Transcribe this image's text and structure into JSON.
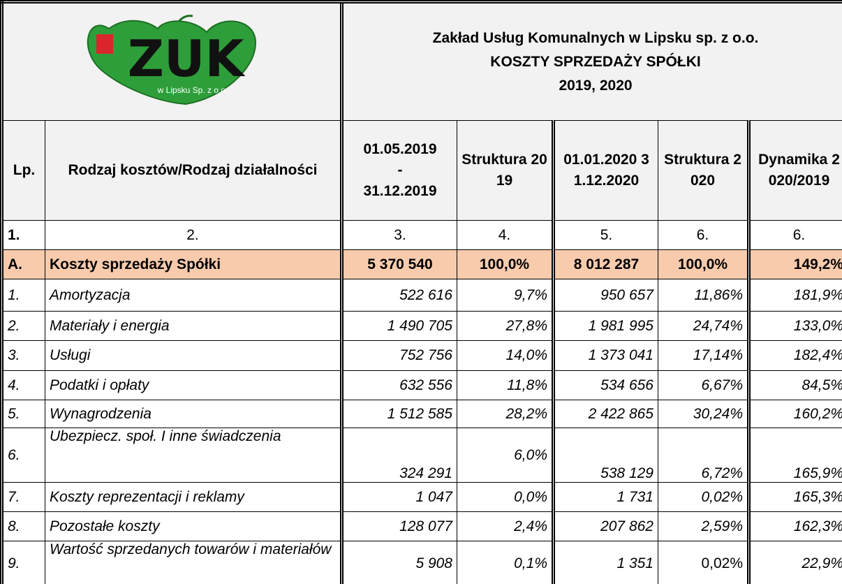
{
  "logo": {
    "text": "ZUK",
    "subtext": "w Lipsku Sp. z o.o."
  },
  "header": {
    "company": "Zakład Usług Komunalnych w Lipsku sp. z o.o.",
    "title": "KOSZTY SPRZEDAŻY SPÓŁKI",
    "years": "2019, 2020"
  },
  "table": {
    "columns": [
      "Lp.",
      "Rodzaj kosztów/Rodzaj działalności",
      "01.05.2019\n-\n31.12.2019",
      "Struktura 2019",
      "01.01.2020 31.12.2020",
      "Struktura 2020",
      "Dynamika 2020/2019"
    ],
    "numbers": [
      "1.",
      "2.",
      "3.",
      "4.",
      "5.",
      "6.",
      "6."
    ],
    "rows": [
      [
        "A.",
        "Koszty sprzedaży Spółki",
        "5 370 540",
        "100,0%",
        "8 012 287",
        "100,0%",
        "149,2%"
      ],
      [
        "1.",
        "Amortyzacja",
        "522 616",
        "9,7%",
        "950 657",
        "11,86%",
        "181,9%"
      ],
      [
        "2.",
        "Materiały i energia",
        "1 490 705",
        "27,8%",
        "1 981 995",
        "24,74%",
        "133,0%"
      ],
      [
        "3.",
        "Usługi",
        "752 756",
        "14,0%",
        "1 373 041",
        "17,14%",
        "182,4%"
      ],
      [
        "4.",
        "Podatki i opłaty",
        "632 556",
        "11,8%",
        "534 656",
        "6,67%",
        "84,5%"
      ],
      [
        "5.",
        "Wynagrodzenia",
        "1 512 585",
        "28,2%",
        "2 422 865",
        "30,24%",
        "160,2%"
      ],
      [
        "6.",
        "Ubezpiecz. społ. I inne świadczenia",
        "324 291",
        "6,0%",
        "538 129",
        "6,72%",
        "165,9%"
      ],
      [
        "7.",
        "Koszty reprezentacji i reklamy",
        "1 047",
        "0,0%",
        "1 731",
        "0,02%",
        "165,3%"
      ],
      [
        "8.",
        "Pozostałe koszty",
        "128 077",
        "2,4%",
        "207 862",
        "2,59%",
        "162,3%"
      ],
      [
        "9.",
        "Wartość sprzedanych towarów i materiałów",
        "5 908",
        "0,1%",
        "1 351",
        "0,02%",
        "22,9%"
      ]
    ]
  }
}
